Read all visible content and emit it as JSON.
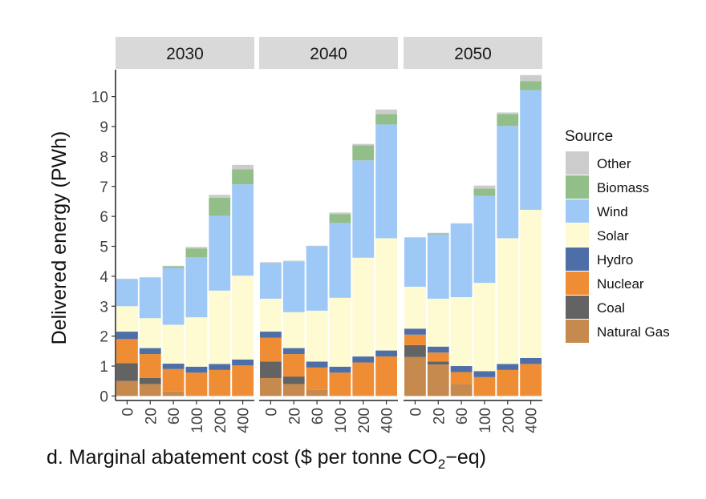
{
  "chart_data": {
    "type": "bar",
    "stacked": true,
    "title": "",
    "xlabel_prefix": "d. Marginal abatement cost ($ per tonne CO",
    "xlabel_subscript": "2",
    "xlabel_suffix": "−eq)",
    "ylabel": "Delivered energy (PWh)",
    "ylim": [
      -0.15,
      10.9
    ],
    "yticks": [
      0,
      1,
      2,
      3,
      4,
      5,
      6,
      7,
      8,
      9,
      10
    ],
    "categories": [
      "0",
      "20",
      "60",
      "100",
      "200",
      "400"
    ],
    "legend": {
      "title": "Source",
      "position": "right"
    },
    "sources": [
      "Natural Gas",
      "Coal",
      "Nuclear",
      "Hydro",
      "Solar",
      "Wind",
      "Biomass",
      "Other"
    ],
    "legend_order": [
      "Other",
      "Biomass",
      "Wind",
      "Solar",
      "Hydro",
      "Nuclear",
      "Coal",
      "Natural Gas"
    ],
    "colors": {
      "Natural Gas": "#c68a4e",
      "Coal": "#636363",
      "Nuclear": "#ef8d35",
      "Hydro": "#4e6ea8",
      "Solar": "#fefad2",
      "Wind": "#9ec8f6",
      "Biomass": "#92be89",
      "Other": "#cccccc"
    },
    "panels": [
      {
        "label": "2030",
        "series": [
          {
            "name": "Natural Gas",
            "values": [
              0.5,
              0.4,
              0.15,
              0.03,
              0.02,
              0.02
            ]
          },
          {
            "name": "Coal",
            "values": [
              0.6,
              0.2,
              0.0,
              0.0,
              0.0,
              0.0
            ]
          },
          {
            "name": "Nuclear",
            "values": [
              0.8,
              0.8,
              0.75,
              0.75,
              0.85,
              1.0
            ]
          },
          {
            "name": "Hydro",
            "values": [
              0.25,
              0.2,
              0.18,
              0.2,
              0.2,
              0.2
            ]
          },
          {
            "name": "Solar",
            "values": [
              0.85,
              1.0,
              1.3,
              1.65,
              2.45,
              2.8
            ]
          },
          {
            "name": "Wind",
            "values": [
              0.9,
              1.35,
              1.9,
              2.0,
              2.5,
              3.05
            ]
          },
          {
            "name": "Biomass",
            "values": [
              0.0,
              0.0,
              0.05,
              0.3,
              0.6,
              0.5
            ]
          },
          {
            "name": "Other",
            "values": [
              0.02,
              0.02,
              0.02,
              0.05,
              0.1,
              0.15
            ]
          }
        ]
      },
      {
        "label": "2040",
        "series": [
          {
            "name": "Natural Gas",
            "values": [
              0.6,
              0.4,
              0.2,
              0.03,
              0.02,
              0.02
            ]
          },
          {
            "name": "Coal",
            "values": [
              0.55,
              0.25,
              0.0,
              0.0,
              0.0,
              0.0
            ]
          },
          {
            "name": "Nuclear",
            "values": [
              0.8,
              0.75,
              0.75,
              0.75,
              1.1,
              1.3
            ]
          },
          {
            "name": "Hydro",
            "values": [
              0.2,
              0.2,
              0.2,
              0.2,
              0.2,
              0.2
            ]
          },
          {
            "name": "Solar",
            "values": [
              1.1,
              1.2,
              1.7,
              2.3,
              3.3,
              3.75
            ]
          },
          {
            "name": "Wind",
            "values": [
              1.2,
              1.7,
              2.15,
              2.5,
              3.25,
              3.8
            ]
          },
          {
            "name": "Biomass",
            "values": [
              0.0,
              0.0,
              0.0,
              0.3,
              0.5,
              0.35
            ]
          },
          {
            "name": "Other",
            "values": [
              0.02,
              0.02,
              0.02,
              0.05,
              0.05,
              0.15
            ]
          }
        ]
      },
      {
        "label": "2050",
        "series": [
          {
            "name": "Natural Gas",
            "values": [
              1.3,
              1.05,
              0.4,
              0.03,
              0.02,
              0.02
            ]
          },
          {
            "name": "Coal",
            "values": [
              0.4,
              0.1,
              0.0,
              0.0,
              0.0,
              0.0
            ]
          },
          {
            "name": "Nuclear",
            "values": [
              0.35,
              0.3,
              0.4,
              0.6,
              0.85,
              1.05
            ]
          },
          {
            "name": "Hydro",
            "values": [
              0.2,
              0.2,
              0.2,
              0.2,
              0.2,
              0.2
            ]
          },
          {
            "name": "Solar",
            "values": [
              1.4,
              1.6,
              2.3,
              2.95,
              4.2,
              4.95
            ]
          },
          {
            "name": "Wind",
            "values": [
              1.65,
              2.15,
              2.45,
              2.9,
              3.75,
              4.0
            ]
          },
          {
            "name": "Biomass",
            "values": [
              0.0,
              0.03,
              0.0,
              0.25,
              0.4,
              0.3
            ]
          },
          {
            "name": "Other",
            "values": [
              0.0,
              0.02,
              0.02,
              0.1,
              0.05,
              0.2
            ]
          }
        ]
      }
    ]
  }
}
